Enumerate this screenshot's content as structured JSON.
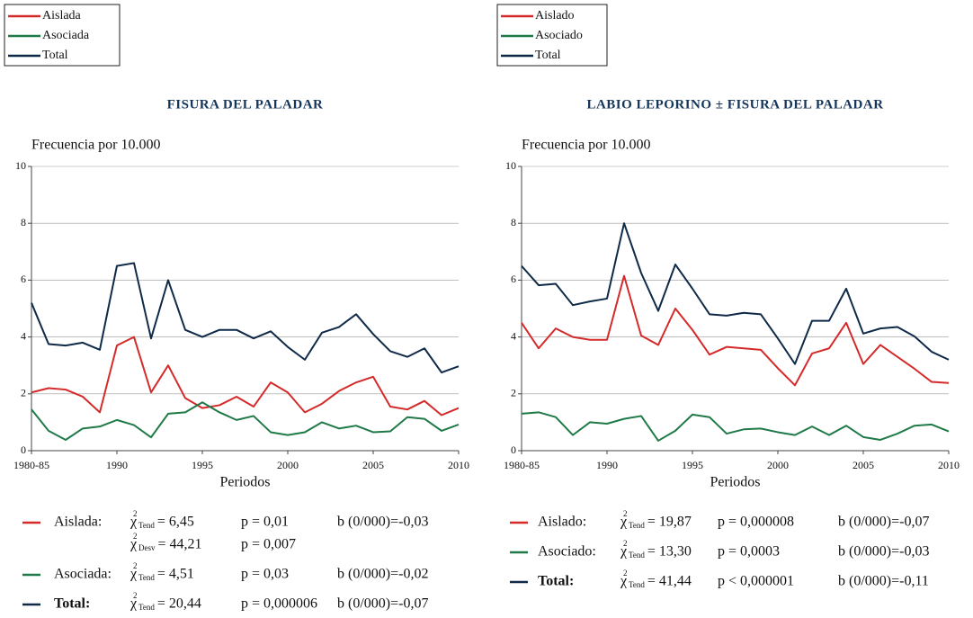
{
  "chart_data": [
    {
      "type": "line",
      "title": "FISURA DEL PALADAR",
      "ylabel": "Frecuencia por 10.000",
      "xlabel": "Periodos",
      "categories": [
        "1980-85",
        null,
        null,
        null,
        null,
        "1990",
        null,
        null,
        null,
        null,
        "1995",
        null,
        null,
        null,
        null,
        "2000",
        null,
        null,
        null,
        null,
        "2005",
        null,
        null,
        null,
        null,
        "2010"
      ],
      "ylim": [
        0,
        10
      ],
      "yticks": [
        0,
        2,
        4,
        6,
        8,
        10
      ],
      "grid": true,
      "series": [
        {
          "name": "Aislada",
          "color": "#d42a2a",
          "values": [
            2.05,
            2.2,
            2.15,
            1.9,
            1.35,
            3.7,
            4.0,
            2.05,
            3.0,
            1.85,
            1.5,
            1.6,
            1.9,
            1.55,
            2.4,
            2.05,
            1.35,
            1.65,
            2.1,
            2.4,
            2.6,
            1.55,
            1.45,
            1.75,
            1.25,
            1.5
          ]
        },
        {
          "name": "Asociada",
          "color": "#1f7a48",
          "values": [
            1.45,
            0.7,
            0.38,
            0.78,
            0.85,
            1.08,
            0.9,
            0.47,
            1.3,
            1.35,
            1.7,
            1.35,
            1.08,
            1.22,
            0.65,
            0.55,
            0.65,
            1.0,
            0.78,
            0.88,
            0.65,
            0.68,
            1.18,
            1.12,
            0.7,
            0.92
          ]
        },
        {
          "name": "Total",
          "color": "#0f2a48",
          "values": [
            5.2,
            3.75,
            3.7,
            3.8,
            3.55,
            6.5,
            6.6,
            3.95,
            6.0,
            4.25,
            4.0,
            4.25,
            4.25,
            3.95,
            4.2,
            3.65,
            3.2,
            4.15,
            4.35,
            4.8,
            4.1,
            3.5,
            3.3,
            3.6,
            2.75,
            2.97
          ]
        }
      ],
      "stats": [
        {
          "label": "Aislada:",
          "entries": [
            {
              "chi": "χ",
              "sup": "2",
              "sub": "Tend",
              "value": "= 6,45",
              "p": "p = 0,01",
              "b": "b (0/000)=-0,03"
            },
            {
              "chi": "χ",
              "sup": "2",
              "sub": "Desv",
              "value": "= 44,21",
              "p": "p = 0,007"
            }
          ]
        },
        {
          "label": "Asociada:",
          "entries": [
            {
              "chi": "χ",
              "sup": "2",
              "sub": "Tend",
              "value": "= 4,51",
              "p": "p = 0,03",
              "b": "b (0/000)=-0,02"
            }
          ]
        },
        {
          "label": "Total:",
          "entries": [
            {
              "chi": "χ",
              "sup": "2",
              "sub": "Tend",
              "value": "= 20,44",
              "p": "p = 0,000006",
              "b": "b (0/000)=-0,07"
            }
          ]
        }
      ]
    },
    {
      "type": "line",
      "title": "LABIO LEPORINO ± FISURA DEL PALADAR",
      "ylabel": "Frecuencia por 10.000",
      "xlabel": "Periodos",
      "categories": [
        "1980-85",
        null,
        null,
        null,
        null,
        "1990",
        null,
        null,
        null,
        null,
        "1995",
        null,
        null,
        null,
        null,
        "2000",
        null,
        null,
        null,
        null,
        "2005",
        null,
        null,
        null,
        null,
        "2010"
      ],
      "ylim": [
        0,
        10
      ],
      "yticks": [
        0,
        2,
        4,
        6,
        8,
        10
      ],
      "grid": true,
      "series": [
        {
          "name": "Aislado",
          "color": "#d42a2a",
          "values": [
            4.5,
            3.6,
            4.3,
            4.0,
            3.9,
            3.9,
            6.15,
            4.05,
            3.72,
            5.0,
            4.25,
            3.38,
            3.65,
            3.6,
            3.55,
            2.9,
            2.3,
            3.42,
            3.6,
            4.5,
            3.05,
            3.72,
            3.3,
            2.88,
            2.42,
            2.38
          ]
        },
        {
          "name": "Asociado",
          "color": "#1f7a48",
          "values": [
            1.3,
            1.35,
            1.18,
            0.55,
            1.0,
            0.95,
            1.12,
            1.22,
            0.35,
            0.7,
            1.27,
            1.18,
            0.6,
            0.75,
            0.78,
            0.65,
            0.55,
            0.85,
            0.55,
            0.88,
            0.48,
            0.38,
            0.6,
            0.88,
            0.92,
            0.68
          ]
        },
        {
          "name": "Total",
          "color": "#0f2a48",
          "values": [
            6.5,
            5.82,
            5.87,
            5.12,
            5.25,
            5.35,
            8.0,
            6.25,
            4.92,
            6.55,
            5.7,
            4.8,
            4.75,
            4.85,
            4.8,
            3.95,
            3.05,
            4.57,
            4.57,
            5.7,
            4.12,
            4.3,
            4.35,
            4.02,
            3.48,
            3.2
          ]
        }
      ],
      "stats": [
        {
          "label": "Aislado:",
          "entries": [
            {
              "chi": "χ",
              "sup": "2",
              "sub": "Tend",
              "value": "= 19,87",
              "p": "p = 0,000008",
              "b": "b (0/000)=-0,07"
            }
          ]
        },
        {
          "label": "Asociado:",
          "entries": [
            {
              "chi": "χ",
              "sup": "2",
              "sub": "Tend",
              "value": "= 13,30",
              "p": "p = 0,0003",
              "b": "b (0/000)=-0,03"
            }
          ]
        },
        {
          "label": "Total:",
          "entries": [
            {
              "chi": "χ",
              "sup": "2",
              "sub": "Tend",
              "value": "= 41,44",
              "p": "p < 0,000001",
              "b": "b (0/000)=-0,11"
            }
          ]
        }
      ]
    }
  ]
}
